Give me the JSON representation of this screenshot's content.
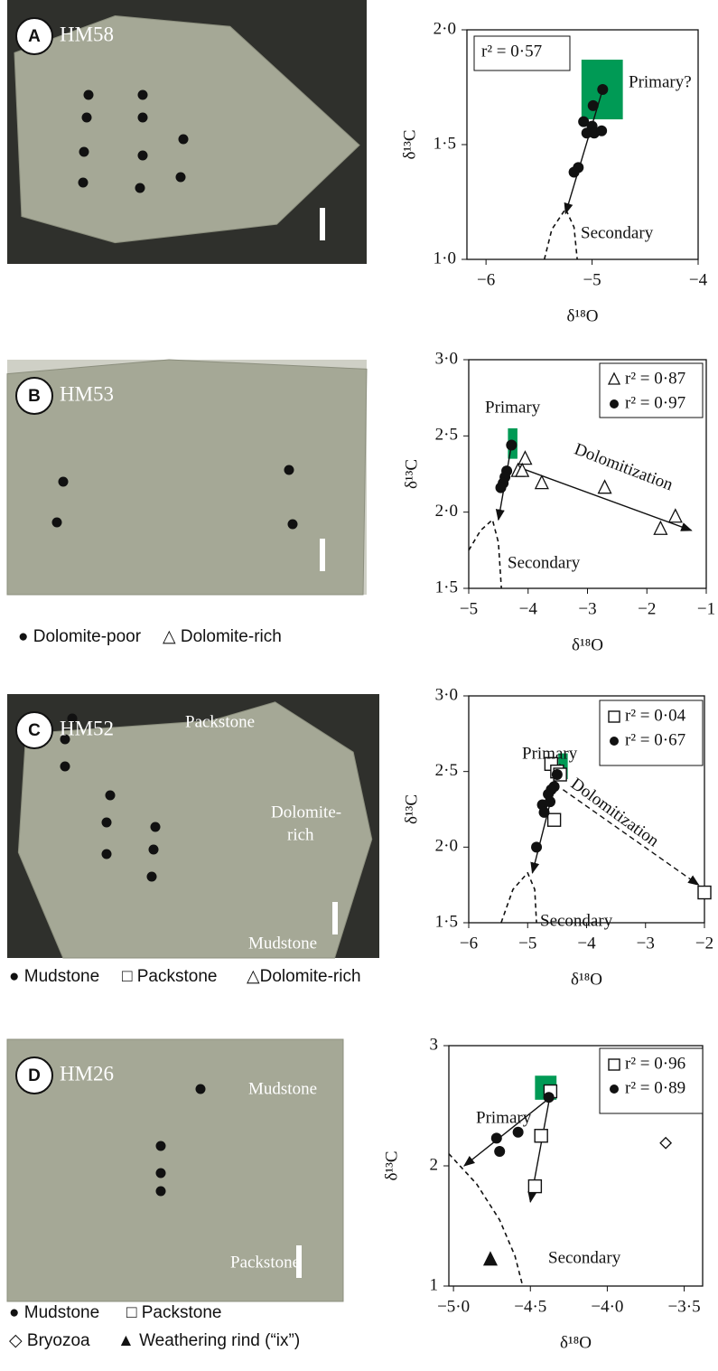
{
  "photos": [
    {
      "letter": "A",
      "sample": "HM58"
    },
    {
      "letter": "B",
      "sample": "HM53",
      "legend": [
        "● Dolomite-poor",
        "△ Dolomite-rich"
      ]
    },
    {
      "letter": "C",
      "sample": "HM52",
      "labels": [
        "Packstone",
        "Dolomite-",
        "rich",
        "Mudstone"
      ],
      "legend": [
        "● Mudstone",
        "□ Packstone",
        "△Dolomite-rich"
      ]
    },
    {
      "letter": "D",
      "sample": "HM26",
      "labels": [
        "Mudstone",
        "Packstone"
      ],
      "legend": [
        "● Mudstone",
        "□ Packstone",
        "◇ Bryozoa",
        "▲ Weathering rind (“ix”)"
      ]
    }
  ],
  "chart_data": [
    {
      "type": "scatter",
      "x_label": "δ¹⁸O",
      "y_label": "δ¹³C",
      "xlim": [
        -6.18,
        -4
      ],
      "ylim": [
        1,
        2
      ],
      "xticks": [
        {
          "value": -6,
          "label": "−6"
        },
        {
          "value": -5,
          "label": "−5"
        },
        {
          "value": -4,
          "label": "−4"
        }
      ],
      "yticks": [
        {
          "value": 1,
          "label": "1·0"
        },
        {
          "value": 1.5,
          "label": "1·5"
        },
        {
          "value": 2,
          "label": "2·0"
        }
      ],
      "series": [
        {
          "name": "r² = 0·57",
          "marker": "circle",
          "color": "#111111",
          "x": [
            -4.9,
            -4.99,
            -5.08,
            -5.0,
            -5.05,
            -4.98,
            -4.91,
            -5.13,
            -5.17
          ],
          "y": [
            1.74,
            1.67,
            1.6,
            1.58,
            1.55,
            1.55,
            1.56,
            1.4,
            1.38
          ]
        }
      ],
      "primary_box": {
        "x": [
          -5.1,
          -4.71
        ],
        "y": [
          1.61,
          1.87
        ],
        "color": "#009a55"
      },
      "trends": [
        {
          "from": [
            -4.9,
            1.74
          ],
          "to": [
            -5.25,
            1.2
          ],
          "dashed": false
        }
      ],
      "secondary_curve": {
        "x": [
          -5.45,
          -5.38,
          -5.25,
          -5.17,
          -5.14
        ],
        "y": [
          1,
          1.13,
          1.22,
          1.14,
          1
        ]
      },
      "annotations": [
        "Primary?",
        "Secondary"
      ]
    },
    {
      "type": "scatter",
      "x_label": "δ¹⁸O",
      "y_label": "δ¹³C",
      "xlim": [
        -5,
        -1
      ],
      "ylim": [
        1.5,
        3
      ],
      "xticks": [
        {
          "value": -5,
          "label": "−5"
        },
        {
          "value": -4,
          "label": "−4"
        },
        {
          "value": -3,
          "label": "−3"
        },
        {
          "value": -2,
          "label": "−2"
        },
        {
          "value": -1,
          "label": "−1"
        }
      ],
      "yticks": [
        {
          "value": 1.5,
          "label": "1·5"
        },
        {
          "value": 2,
          "label": "2·0"
        },
        {
          "value": 2.5,
          "label": "2·5"
        },
        {
          "value": 3,
          "label": "3·0"
        }
      ],
      "series": [
        {
          "name": "r² = 0·87",
          "marker": "triangle-open",
          "color": "#111111",
          "x": [
            -4.17,
            -4.05,
            -4.1,
            -3.77,
            -2.71,
            -1.52,
            -1.77
          ],
          "y": [
            2.27,
            2.35,
            2.27,
            2.19,
            2.16,
            1.97,
            1.89
          ]
        },
        {
          "name": "r² = 0·97",
          "marker": "circle",
          "color": "#111111",
          "x": [
            -4.28,
            -4.36,
            -4.39,
            -4.42,
            -4.46
          ],
          "y": [
            2.44,
            2.27,
            2.23,
            2.19,
            2.16
          ]
        }
      ],
      "primary_box": {
        "x": [
          -4.34,
          -4.18
        ],
        "y": [
          2.35,
          2.55
        ],
        "color": "#009a55"
      },
      "trends": [
        {
          "from": [
            -4.2,
            2.3
          ],
          "to": [
            -1.25,
            1.88
          ],
          "dashed": false
        },
        {
          "from": [
            -4.28,
            2.44
          ],
          "to": [
            -4.5,
            1.95
          ],
          "dashed": false
        }
      ],
      "secondary_curve": {
        "x": [
          -5,
          -4.8,
          -4.6,
          -4.5,
          -4.45
        ],
        "y": [
          1.75,
          1.88,
          1.95,
          1.8,
          1.5
        ]
      },
      "annotations": [
        "Primary",
        "Dolomitization",
        "Secondary"
      ]
    },
    {
      "type": "scatter",
      "x_label": "δ¹⁸O",
      "y_label": "δ¹³C",
      "xlim": [
        -6,
        -2
      ],
      "ylim": [
        1.5,
        3
      ],
      "xticks": [
        {
          "value": -6,
          "label": "−6"
        },
        {
          "value": -5,
          "label": "−5"
        },
        {
          "value": -4,
          "label": "−4"
        },
        {
          "value": -3,
          "label": "−3"
        },
        {
          "value": -2,
          "label": "−2"
        }
      ],
      "yticks": [
        {
          "value": 1.5,
          "label": "1·5"
        },
        {
          "value": 2,
          "label": "2·0"
        },
        {
          "value": 2.5,
          "label": "2·5"
        },
        {
          "value": 3,
          "label": "3·0"
        }
      ],
      "series": [
        {
          "name": "r² = 0·04",
          "marker": "square-open",
          "color": "#111111",
          "x": [
            -4.6,
            -4.5,
            -4.45,
            -4.55,
            -2.0
          ],
          "y": [
            2.55,
            2.5,
            2.48,
            2.18,
            1.7
          ]
        },
        {
          "name": "r² = 0·67",
          "marker": "circle",
          "color": "#111111",
          "x": [
            -4.5,
            -4.55,
            -4.6,
            -4.65,
            -4.75,
            -4.72,
            -4.62,
            -4.85
          ],
          "y": [
            2.48,
            2.4,
            2.38,
            2.35,
            2.28,
            2.23,
            2.3,
            2.0
          ]
        }
      ],
      "primary_box": {
        "x": [
          -4.48,
          -4.32
        ],
        "y": [
          2.45,
          2.62
        ],
        "color": "#009a55"
      },
      "trends": [
        {
          "from": [
            -4.45,
            2.55
          ],
          "to": [
            -4.92,
            1.83
          ],
          "dashed": false
        },
        {
          "from": [
            -4.4,
            2.38
          ],
          "to": [
            -2.1,
            1.75
          ],
          "dashed": true
        }
      ],
      "secondary_curve": {
        "x": [
          -5.45,
          -5.25,
          -5.0,
          -4.88,
          -4.85
        ],
        "y": [
          1.5,
          1.72,
          1.83,
          1.72,
          1.5
        ]
      },
      "annotations": [
        "Primary",
        "Dolomitization",
        "Secondary"
      ]
    },
    {
      "type": "scatter",
      "x_label": "δ¹⁸O",
      "y_label": "δ¹³C",
      "xlim": [
        -5.03,
        -3.38
      ],
      "ylim": [
        1,
        3
      ],
      "xticks": [
        {
          "value": -5,
          "label": "−5·0"
        },
        {
          "value": -4.5,
          "label": "−4·5"
        },
        {
          "value": -4,
          "label": "−4·0"
        },
        {
          "value": -3.5,
          "label": "−3·5"
        }
      ],
      "yticks": [
        1,
        2,
        3
      ],
      "series": [
        {
          "name": "r² = 0·96",
          "marker": "square-open",
          "color": "#111111",
          "x": [
            -4.37,
            -4.43,
            -4.47
          ],
          "y": [
            2.62,
            2.25,
            1.83
          ]
        },
        {
          "name": "r² = 0·89",
          "marker": "circle",
          "color": "#111111",
          "x": [
            -4.38,
            -4.72,
            -4.7,
            -4.58
          ],
          "y": [
            2.57,
            2.23,
            2.12,
            2.28
          ]
        },
        {
          "marker": "diamond-open",
          "color": "#111111",
          "x": [
            -3.62
          ],
          "y": [
            2.19
          ]
        },
        {
          "marker": "triangle",
          "color": "#111111",
          "x": [
            -4.76
          ],
          "y": [
            1.22
          ]
        }
      ],
      "primary_box": {
        "x": [
          -4.47,
          -4.33
        ],
        "y": [
          2.55,
          2.75
        ],
        "color": "#009a55"
      },
      "trends": [
        {
          "from": [
            -4.37,
            2.57
          ],
          "to": [
            -4.93,
            2.0
          ],
          "dashed": false
        },
        {
          "from": [
            -4.37,
            2.6
          ],
          "to": [
            -4.5,
            1.7
          ],
          "dashed": false
        }
      ],
      "secondary_curve": {
        "x": [
          -5.03,
          -4.85,
          -4.7,
          -4.6,
          -4.55
        ],
        "y": [
          2.1,
          1.85,
          1.55,
          1.25,
          1.0
        ]
      },
      "annotations": [
        "Primary",
        "Secondary"
      ]
    }
  ]
}
